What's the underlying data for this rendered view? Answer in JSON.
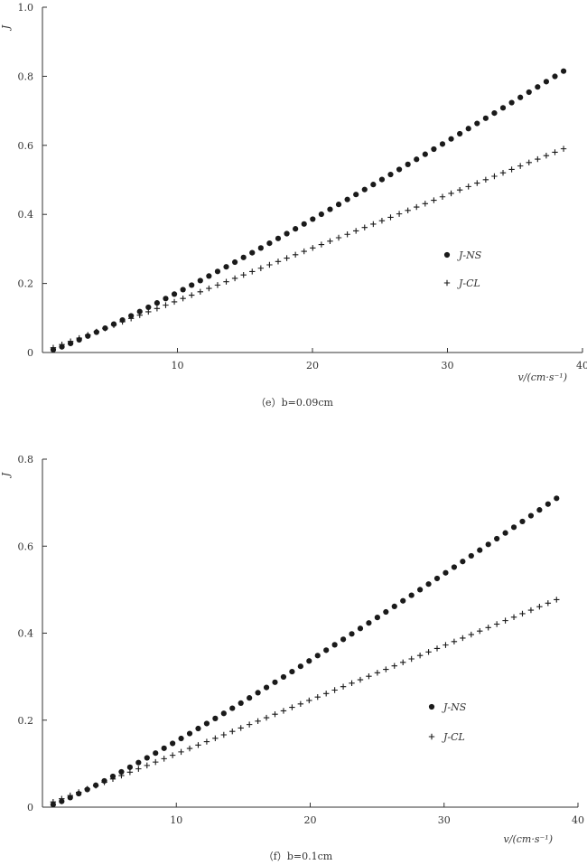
{
  "chart_data": [
    {
      "type": "scatter",
      "caption": "（e）b=0.09cm",
      "xlabel": "v/(cm·s⁻¹)",
      "ylabel": "J",
      "xlim": [
        0,
        40
      ],
      "ylim": [
        0,
        1.0
      ],
      "xticks": [
        {
          "v": 10,
          "label": "10"
        },
        {
          "v": 20,
          "label": "20"
        },
        {
          "v": 30,
          "label": "30"
        },
        {
          "v": 40,
          "label": "40"
        }
      ],
      "yticks": [
        {
          "v": 0,
          "label": "0"
        },
        {
          "v": 0.2,
          "label": "0.2"
        },
        {
          "v": 0.4,
          "label": "0.4"
        },
        {
          "v": 0.6,
          "label": "0.6"
        },
        {
          "v": 0.8,
          "label": "0.8"
        },
        {
          "v": 1.0,
          "label": "1.0"
        }
      ],
      "legend": {
        "position": "center-right"
      },
      "series": [
        {
          "name": "J-NS",
          "marker": "dot",
          "x_start": 0.8,
          "x_end": 38.6,
          "count": 60,
          "y_start": 0.008,
          "y_end": 0.815,
          "curve": 1.12
        },
        {
          "name": "J-CL",
          "marker": "plus",
          "x_start": 0.8,
          "x_end": 38.6,
          "count": 60,
          "y_start": 0.014,
          "y_end": 0.59,
          "curve": 1.02
        }
      ]
    },
    {
      "type": "scatter",
      "caption": "（f）b=0.1cm",
      "xlabel": "v/(cm·s⁻¹)",
      "ylabel": "J",
      "xlim": [
        0,
        40
      ],
      "ylim": [
        0,
        0.8
      ],
      "xticks": [
        {
          "v": 10,
          "label": "10"
        },
        {
          "v": 20,
          "label": "20"
        },
        {
          "v": 30,
          "label": "30"
        },
        {
          "v": 40,
          "label": "40"
        }
      ],
      "yticks": [
        {
          "v": 0,
          "label": "0"
        },
        {
          "v": 0.2,
          "label": "0.2"
        },
        {
          "v": 0.4,
          "label": "0.4"
        },
        {
          "v": 0.6,
          "label": "0.6"
        },
        {
          "v": 0.8,
          "label": "0.8"
        }
      ],
      "legend": {
        "position": "center-right"
      },
      "series": [
        {
          "name": "J-NS",
          "marker": "dot",
          "x_start": 0.8,
          "x_end": 38.4,
          "count": 60,
          "y_start": 0.006,
          "y_end": 0.71,
          "curve": 1.12
        },
        {
          "name": "J-CL",
          "marker": "plus",
          "x_start": 0.8,
          "x_end": 38.4,
          "count": 60,
          "y_start": 0.012,
          "y_end": 0.477,
          "curve": 1.02
        }
      ]
    }
  ]
}
